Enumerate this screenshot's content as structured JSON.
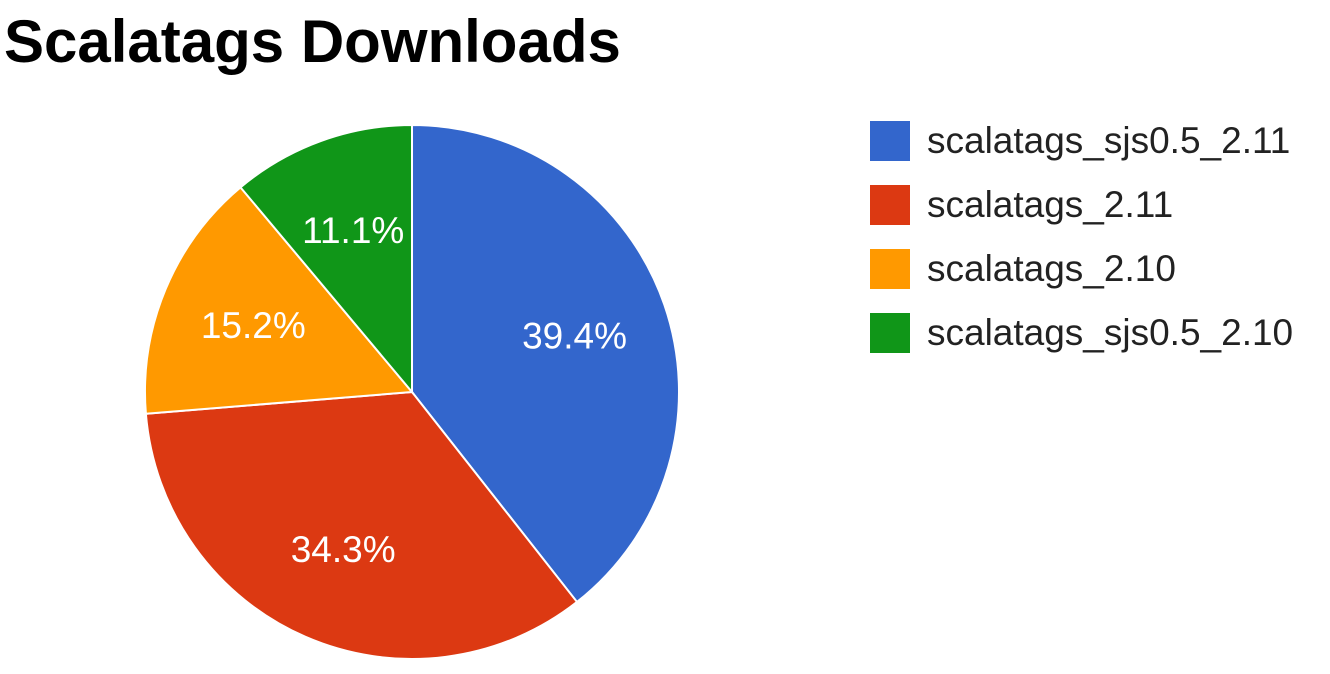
{
  "chart_data": {
    "type": "pie",
    "title": "Scalatags Downloads",
    "legend_position": "right",
    "slices": [
      {
        "label": "scalatags_sjs0.5_2.11",
        "value": 39.4,
        "display": "39.4%",
        "color": "#3366cc"
      },
      {
        "label": "scalatags_2.11",
        "value": 34.3,
        "display": "34.3%",
        "color": "#dc3912"
      },
      {
        "label": "scalatags_2.10",
        "value": 15.2,
        "display": "15.2%",
        "color": "#ff9900"
      },
      {
        "label": "scalatags_sjs0.5_2.10",
        "value": 11.1,
        "display": "11.1%",
        "color": "#109618"
      }
    ]
  }
}
